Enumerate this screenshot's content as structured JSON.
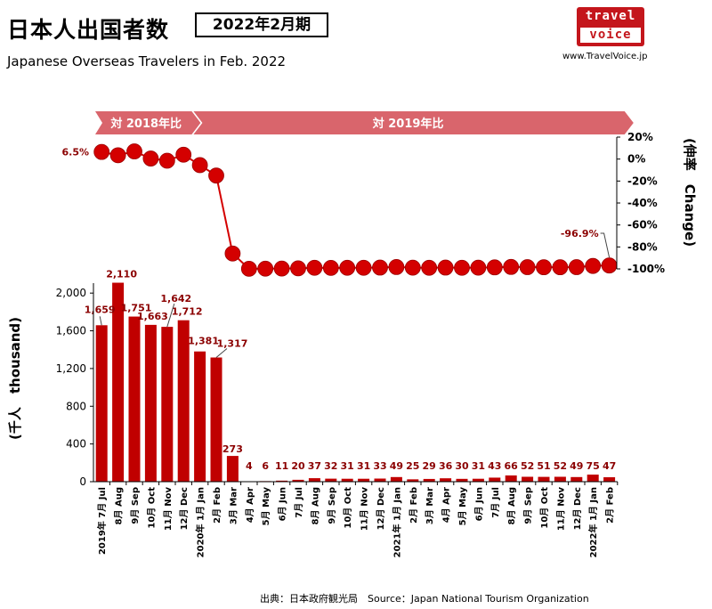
{
  "header": {
    "title": "日本人出国者数",
    "period": "2022年2月期",
    "subtitle": "Japanese Overseas Travelers in Feb. 2022",
    "logo_line1": "travel",
    "logo_line2": "voice",
    "site": "www.TravelVoice.jp"
  },
  "footer": {
    "source": "出典：日本政府観光局　Source：Japan  National Tourism  Organization"
  },
  "ribbons": {
    "left": "対 2018年比",
    "right": "対 2019年比"
  },
  "colors": {
    "bar": "#c00000",
    "dot": "#d40000",
    "label": "#8b0000",
    "ribbon": "#d9656c"
  },
  "chart_data": [
    {
      "type": "bar",
      "ylabel": "(千人　thousand)",
      "ylim": [
        0,
        2200
      ],
      "yticks": [
        "0",
        "400",
        "800",
        "1,200",
        "1,600",
        "2,000"
      ],
      "ytick_values": [
        0,
        400,
        800,
        1200,
        1600,
        2000
      ],
      "categories": [
        "2019年 7月 Jul",
        "8月 Aug",
        "9月 Sep",
        "10月 Oct",
        "11月 Nov",
        "12月 Dec",
        "2020年 1月 Jan",
        "2月 Feb",
        "3月 Mar",
        "4月 Apr",
        "5月 May",
        "6月 Jun",
        "7月 Jul",
        "8月 Aug",
        "9月 Sep",
        "10月 Oct",
        "11月 Nov",
        "12月 Dec",
        "2021年 1月 Jan",
        "2月 Feb",
        "3月 Mar",
        "4月 Apr",
        "5月 May",
        "6月 Jun",
        "7月 Jul",
        "8月 Aug",
        "9月 Sep",
        "10月 Oct",
        "11月 Nov",
        "12月 Dec",
        "2022年 1月 Jan",
        "2月 Feb"
      ],
      "values": [
        1659,
        2110,
        1751,
        1663,
        1642,
        1712,
        1381,
        1317,
        273,
        4,
        6,
        11,
        20,
        37,
        32,
        31,
        31,
        33,
        49,
        25,
        29,
        36,
        30,
        31,
        43,
        66,
        52,
        51,
        52,
        49,
        75,
        47
      ],
      "value_labels": [
        "1,659",
        "2,110",
        "1,751",
        "1,663",
        "1,642",
        "1,712",
        "1,381",
        "1,317",
        "273",
        "4",
        "6",
        "11",
        "20",
        "37",
        "32",
        "31",
        "31",
        "33",
        "49",
        "25",
        "29",
        "36",
        "30",
        "31",
        "43",
        "66",
        "52",
        "51",
        "52",
        "49",
        "75",
        "47"
      ]
    },
    {
      "type": "line",
      "ylabel": "(伸率　Change)",
      "ylim": [
        -100,
        20
      ],
      "yticks": [
        "20%",
        "0%",
        "-20%",
        "-40%",
        "-60%",
        "-80%",
        "-100%"
      ],
      "ytick_values": [
        20,
        0,
        -20,
        -40,
        -60,
        -80,
        -100
      ],
      "values": [
        6.5,
        3.5,
        7.0,
        0.5,
        -1.5,
        4.0,
        -5.5,
        -15.0,
        -86.0,
        -99.9,
        -99.8,
        -99.7,
        -99.5,
        -99.0,
        -99.1,
        -99.0,
        -99.0,
        -98.8,
        -98.3,
        -98.9,
        -99.0,
        -98.8,
        -99.0,
        -98.9,
        -98.6,
        -98.2,
        -98.4,
        -98.5,
        -98.5,
        -98.4,
        -97.3,
        -96.9
      ],
      "annotations": [
        "6.5%",
        "-96.9%"
      ]
    }
  ]
}
